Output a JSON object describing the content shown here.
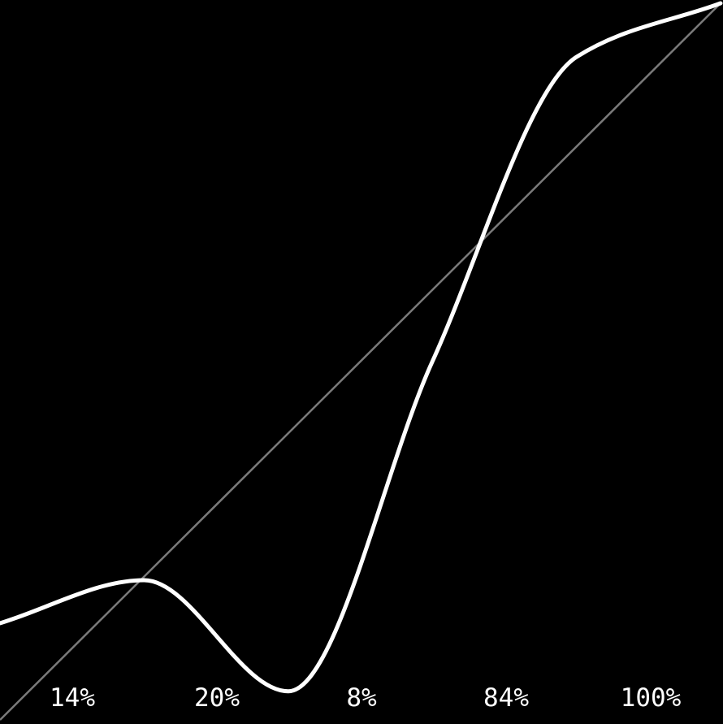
{
  "chart_data": {
    "type": "line",
    "title": "",
    "xlabel": "",
    "ylabel": "",
    "xlim": [
      0,
      1
    ],
    "ylim": [
      0,
      1
    ],
    "grid": false,
    "series": [
      {
        "x": [
          0.0,
          0.2,
          0.4,
          0.6,
          0.8,
          1.0
        ],
        "y": [
          0.135,
          0.195,
          0.04,
          0.5,
          0.925,
          1.0
        ]
      }
    ],
    "reference_line": {
      "x": [
        0,
        1
      ],
      "y": [
        0,
        1
      ]
    },
    "point_labels": [
      "14%",
      "20%",
      "8%",
      "84%",
      "100%"
    ],
    "colors": {
      "background": "#000000",
      "curve": "#ffffff",
      "reference": "#7a7a7a",
      "labels": "#ffffff"
    }
  }
}
